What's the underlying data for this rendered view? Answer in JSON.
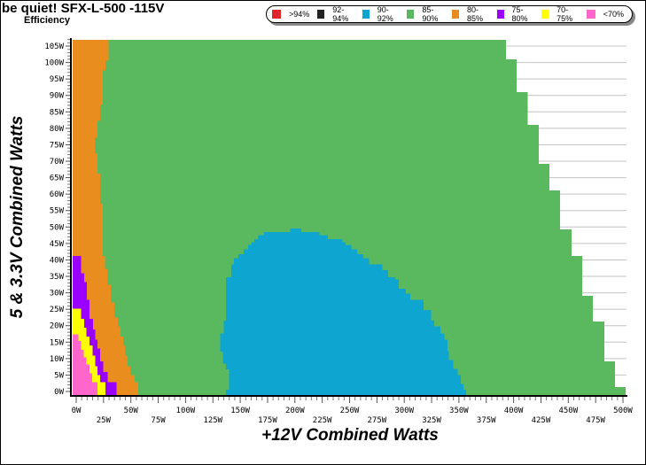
{
  "chart_data": {
    "type": "heatmap",
    "title": "be quiet! SFX-L-500 -115V",
    "subtitle": "Efficiency",
    "xlabel": "+12V Combined Watts",
    "ylabel": "5 & 3.3V Combined Watts",
    "xlim": [
      0,
      500
    ],
    "ylim": [
      0,
      105
    ],
    "x_ticks": [
      "0W",
      "25W",
      "50W",
      "75W",
      "100W",
      "125W",
      "150W",
      "175W",
      "200W",
      "225W",
      "250W",
      "275W",
      "300W",
      "325W",
      "350W",
      "375W",
      "400W",
      "425W",
      "450W",
      "475W",
      "500W"
    ],
    "y_ticks": [
      "0W",
      "5W",
      "10W",
      "15W",
      "20W",
      "25W",
      "30W",
      "35W",
      "40W",
      "45W",
      "50W",
      "55W",
      "60W",
      "65W",
      "70W",
      "75W",
      "80W",
      "85W",
      "90W",
      "95W",
      "100W",
      "105W"
    ],
    "grid": "horizontal",
    "legend_position": "top-right",
    "legend": [
      {
        "label": ">94%",
        "color": "#e0262b"
      },
      {
        "label": "92-94%",
        "color": "#222222"
      },
      {
        "label": "90-92%",
        "color": "#0ea6d1"
      },
      {
        "label": "85-90%",
        "color": "#5ab95e"
      },
      {
        "label": "80-85%",
        "color": "#e98d1f"
      },
      {
        "label": "75-80%",
        "color": "#9a00ff"
      },
      {
        "label": "70-75%",
        "color": "#ffff00"
      },
      {
        "label": "<70%",
        "color": "#ff66cc"
      }
    ],
    "regions_note": "bands are [y_from_W, y_to_W, x_to_W] measured from the left edge (x=-3W); the 90-92% band is [y_from, y_to, x_from, x_to]",
    "regions": [
      {
        "label": "85-90%",
        "bands": [
          [
            -1.1,
            1.35,
            502.4
          ],
          [
            1.35,
            9.15,
            492.7
          ],
          [
            9.15,
            21.3,
            483
          ],
          [
            21.3,
            29.1,
            472.4
          ],
          [
            29.1,
            41.2,
            462.7
          ],
          [
            41.2,
            49.3,
            453
          ],
          [
            49.3,
            61.1,
            442.5
          ],
          [
            61.1,
            69.2,
            432.7
          ],
          [
            69.2,
            81.0,
            423
          ],
          [
            81.0,
            91.0,
            413
          ],
          [
            91.0,
            101.0,
            402.8
          ],
          [
            101.0,
            106.9,
            393
          ]
        ]
      },
      {
        "label": "80-85%",
        "bands": [
          [
            100.7,
            106.9,
            29.4
          ],
          [
            97.7,
            100.7,
            26.7
          ],
          [
            87.2,
            97.7,
            24.3
          ],
          [
            82.4,
            87.2,
            21.9
          ],
          [
            77.3,
            82.4,
            19.4
          ],
          [
            72.4,
            77.3,
            17.0
          ],
          [
            66.2,
            72.4,
            19.4
          ],
          [
            57.1,
            66.2,
            21.9
          ],
          [
            41.2,
            57.1,
            24.3
          ],
          [
            37.3,
            41.2,
            26.5
          ],
          [
            32.4,
            37.3,
            28.9
          ],
          [
            27.0,
            32.4,
            31.6
          ],
          [
            22.5,
            27.0,
            34.8
          ],
          [
            19.8,
            22.5,
            38.1
          ],
          [
            16.7,
            19.8,
            40.5
          ],
          [
            14.0,
            16.7,
            42.9
          ],
          [
            10.9,
            14.0,
            44.6
          ],
          [
            7.7,
            10.9,
            47.0
          ],
          [
            5.0,
            7.7,
            49.4
          ],
          [
            2.8,
            5.0,
            53.5
          ],
          [
            -1.1,
            2.8,
            56.7
          ]
        ]
      },
      {
        "label": "75-80%",
        "bands": [
          [
            36.0,
            41.2,
            4.6
          ],
          [
            33.3,
            36.0,
            7.3
          ],
          [
            27.9,
            33.3,
            9.7
          ],
          [
            22.1,
            27.9,
            12.2
          ],
          [
            18.9,
            22.1,
            15.4
          ],
          [
            15.8,
            18.9,
            17.6
          ],
          [
            13.1,
            15.8,
            19.4
          ],
          [
            9.1,
            13.1,
            21.9
          ],
          [
            5.9,
            9.1,
            24.9
          ],
          [
            2.8,
            5.9,
            28.9
          ],
          [
            -1.1,
            2.8,
            37.0
          ]
        ]
      },
      {
        "label": "70-75%",
        "bands": [
          [
            22.1,
            25.2,
            4.6
          ],
          [
            19.4,
            22.1,
            7.3
          ],
          [
            16.7,
            19.4,
            9.4
          ],
          [
            14.0,
            16.7,
            12.2
          ],
          [
            10.9,
            14.0,
            14.8
          ],
          [
            7.7,
            10.9,
            17.6
          ],
          [
            5.0,
            7.7,
            19.4
          ],
          [
            2.8,
            5.0,
            21.9
          ],
          [
            -1.1,
            2.8,
            26.7
          ]
        ]
      },
      {
        "label": "<70%",
        "bands": [
          [
            15.3,
            17.4,
            1.9
          ],
          [
            12.6,
            15.3,
            4.6
          ],
          [
            10.4,
            12.6,
            6.7
          ],
          [
            8.2,
            10.4,
            9.4
          ],
          [
            5.5,
            8.2,
            12.2
          ],
          [
            2.8,
            5.5,
            14.6
          ],
          [
            -1.1,
            2.8,
            19.4
          ]
        ]
      },
      {
        "label": "90-92%",
        "bands": [
          [
            48.5,
            49.6,
            195.8,
            205.8
          ],
          [
            47.5,
            48.5,
            171.8,
            222.6
          ],
          [
            46.3,
            47.5,
            166.1,
            230.1
          ],
          [
            45.4,
            46.3,
            162.9,
            243.7
          ],
          [
            44.5,
            45.4,
            160.5,
            246.4
          ],
          [
            43.2,
            44.5,
            157.2,
            251.8
          ],
          [
            41.8,
            43.2,
            153.2,
            256.9
          ],
          [
            40.5,
            41.8,
            148.3,
            262.6
          ],
          [
            38.7,
            40.5,
            144.2,
            268.0
          ],
          [
            36.9,
            38.7,
            141.8,
            280.1
          ],
          [
            34.7,
            36.9,
            141.8,
            285.2
          ],
          [
            34.0,
            34.7,
            137,
            291.7
          ],
          [
            31.3,
            34.0,
            137,
            294.9
          ],
          [
            29.7,
            31.3,
            137,
            301.3
          ],
          [
            27.9,
            29.7,
            137,
            305.4
          ],
          [
            24.8,
            27.9,
            137,
            317.7
          ],
          [
            21.6,
            24.8,
            137,
            324.7
          ],
          [
            19.8,
            21.6,
            135.1,
            327.4
          ],
          [
            17.6,
            19.8,
            135.1,
            333.1
          ],
          [
            15.8,
            17.6,
            131.5,
            336.9
          ],
          [
            12.2,
            15.8,
            131.5,
            339.5
          ],
          [
            9.5,
            12.2,
            134.3,
            340.9
          ],
          [
            8.6,
            9.5,
            134.3,
            345
          ],
          [
            6.8,
            8.6,
            137,
            345
          ],
          [
            5.0,
            6.8,
            139.6,
            349
          ],
          [
            2.3,
            5.0,
            139.6,
            351.7
          ],
          [
            0.5,
            2.3,
            139.6,
            354.1
          ],
          [
            -1.1,
            0.5,
            137,
            356.6
          ]
        ]
      }
    ]
  }
}
